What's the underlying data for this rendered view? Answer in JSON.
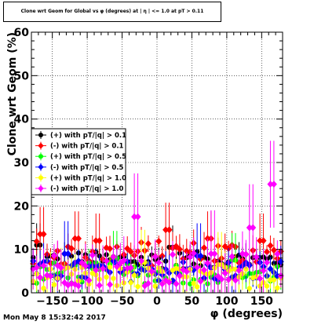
{
  "title": "Clone wrt Geom for Global vs φ (degrees) at | η | <= 1.0 at pT > 0.11",
  "timestamp": "Mon May  8 15:32:42 2017",
  "chart_data": {
    "type": "scatter",
    "xlabel": "φ (degrees)",
    "ylabel": "Clone wrt  Geom (%)",
    "xlim": [
      -180,
      180
    ],
    "ylim": [
      0,
      60
    ],
    "x_ticks": [
      -150,
      -100,
      -50,
      0,
      50,
      100,
      150
    ],
    "y_ticks": [
      0,
      10,
      20,
      30,
      40,
      50,
      60
    ],
    "grid": true,
    "legend_position": "left-middle",
    "series": [
      {
        "name": "(+) with pT/|q| > 0.1",
        "color": "#000000",
        "marker": "circle",
        "base": 7.5,
        "spread": 2.0,
        "err": 2.0,
        "spikes": [
          [
            -170,
            11
          ],
          [
            20,
            10.5
          ]
        ]
      },
      {
        "name": "(-) with pT/|q| > 0.1",
        "color": "#ff0000",
        "marker": "diamond",
        "base": 9.0,
        "spread": 3.0,
        "err": 2.5,
        "spikes": [
          [
            -165,
            13.5
          ],
          [
            -115,
            12.5
          ],
          [
            -85,
            12
          ],
          [
            15,
            14.5
          ],
          [
            75,
            12.5
          ],
          [
            150,
            12
          ]
        ]
      },
      {
        "name": "(+) with pT/|q| > 0.5",
        "color": "#00ff00",
        "marker": "circle",
        "base": 4.5,
        "spread": 2.5,
        "err": 2.5,
        "spikes": [
          [
            -60,
            8
          ],
          [
            110,
            7.5
          ]
        ]
      },
      {
        "name": "(-) with pT/|q| > 0.5",
        "color": "#0000ff",
        "marker": "diamond",
        "base": 5.0,
        "spread": 2.5,
        "err": 3.0,
        "spikes": [
          [
            -130,
            9
          ],
          [
            60,
            8.5
          ]
        ]
      },
      {
        "name": "(+) with pT/|q| > 1.0",
        "color": "#ffff00",
        "marker": "circle",
        "base": 3.5,
        "spread": 2.5,
        "err": 3.0,
        "spikes": [
          [
            -20,
            7
          ],
          [
            90,
            6.5
          ]
        ]
      },
      {
        "name": "(-) with pT/|q| > 1.0",
        "color": "#ff00ff",
        "marker": "diamond",
        "base": 5.5,
        "spread": 4.0,
        "err": 4.0,
        "spikes": [
          [
            -30,
            17.5
          ],
          [
            135,
            15
          ],
          [
            165,
            25
          ],
          [
            80,
            9
          ]
        ]
      }
    ]
  }
}
